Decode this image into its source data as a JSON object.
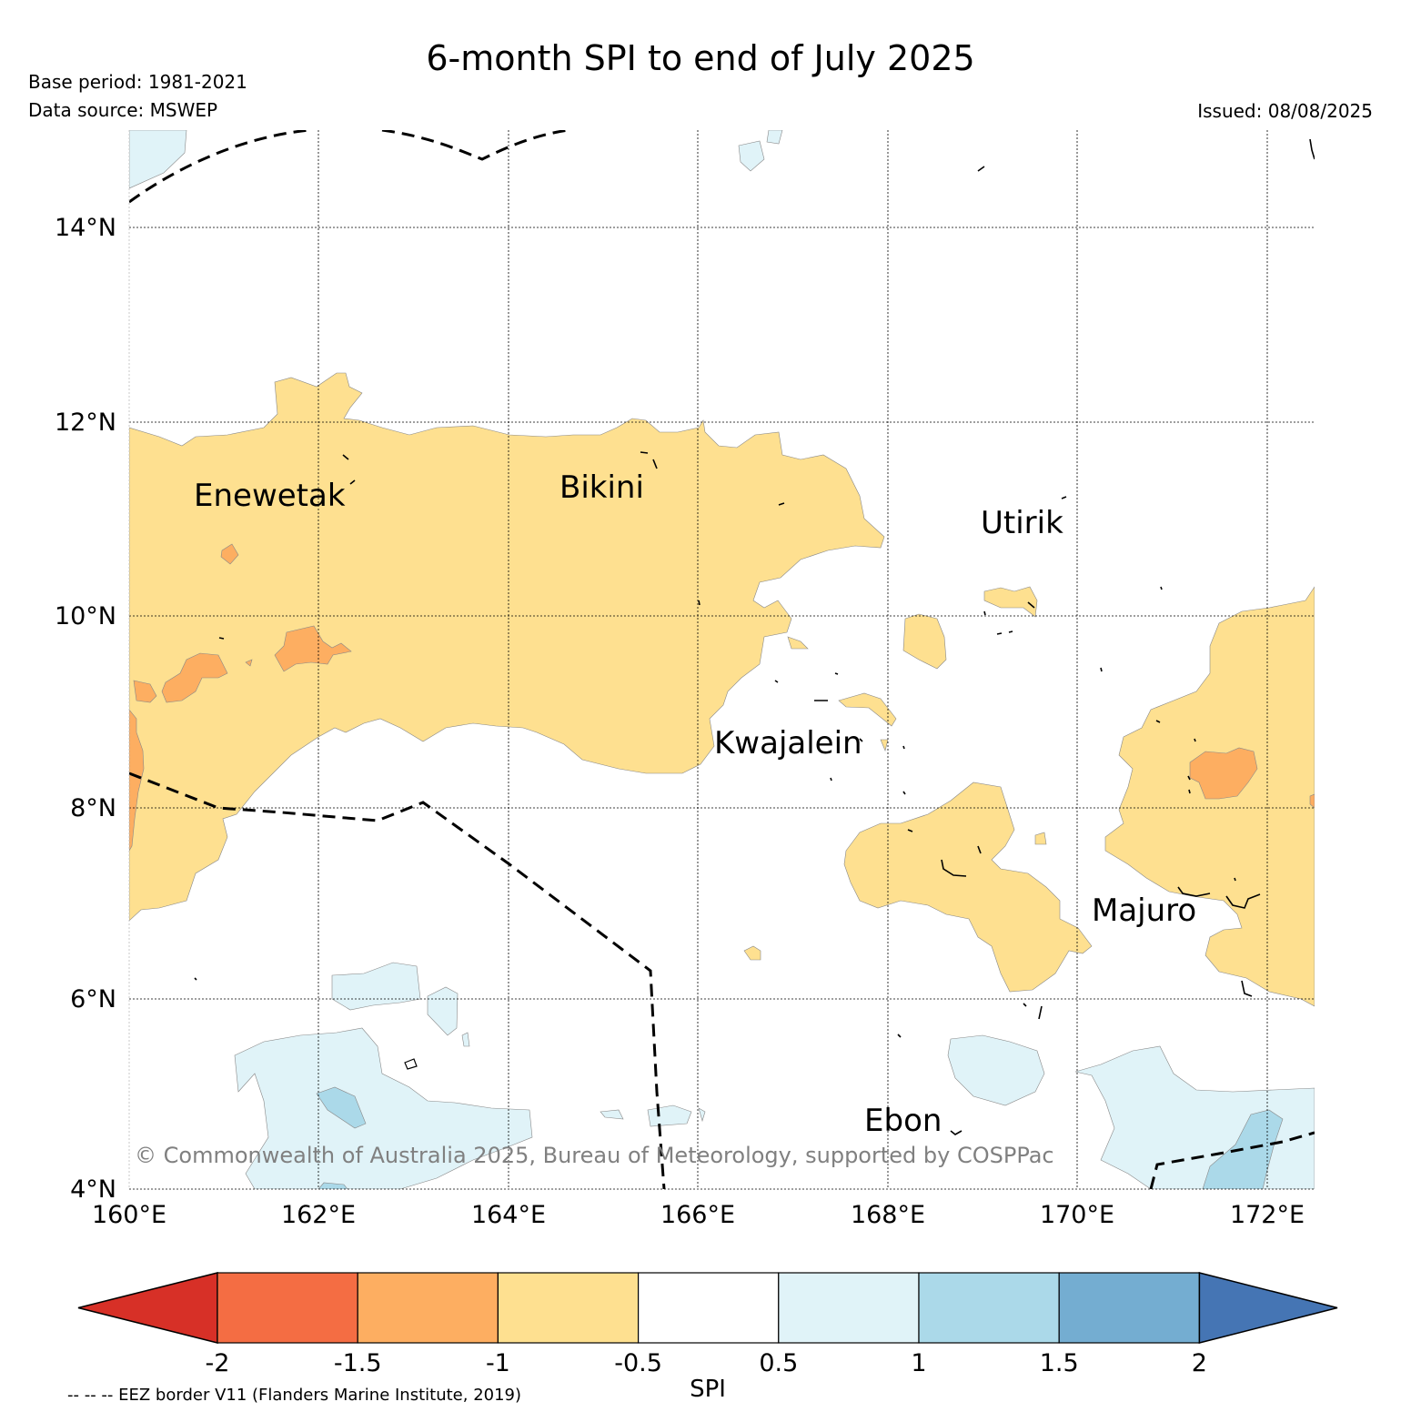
{
  "header": {
    "title": "6-month SPI to end of July 2025",
    "base_period": "Base period: 1981-2021",
    "data_source": "Data source: MSWEP",
    "issued": "Issued: 08/08/2025"
  },
  "map": {
    "lon_range": [
      160,
      172.5
    ],
    "lat_range": [
      4,
      15
    ],
    "x_ticks": [
      "160°E",
      "162°E",
      "164°E",
      "166°E",
      "168°E",
      "170°E",
      "172°E"
    ],
    "y_ticks": [
      "4°N",
      "6°N",
      "8°N",
      "10°N",
      "12°N",
      "14°N"
    ],
    "grid": true,
    "places": [
      {
        "name": "Enewetak"
      },
      {
        "name": "Bikini"
      },
      {
        "name": "Utirik"
      },
      {
        "name": "Kwajalein"
      },
      {
        "name": "Majuro"
      },
      {
        "name": "Ebon"
      }
    ],
    "copyright": "© Commonwealth of Australia 2025, Bureau of Meteorology, supported by COSPPac"
  },
  "colorbar": {
    "label": "SPI",
    "ticks": [
      "-2",
      "-1.5",
      "-1",
      "-0.5",
      "0.5",
      "1",
      "1.5",
      "2"
    ],
    "colors": [
      "#d73027",
      "#f46d43",
      "#fdae61",
      "#fee090",
      "#ffffff",
      "#e0f3f8",
      "#abd9e9",
      "#74add1",
      "#4575b4"
    ]
  },
  "footer": {
    "eez_note": "-- -- -- EEZ border V11 (Flanders Marine Institute, 2019)"
  }
}
